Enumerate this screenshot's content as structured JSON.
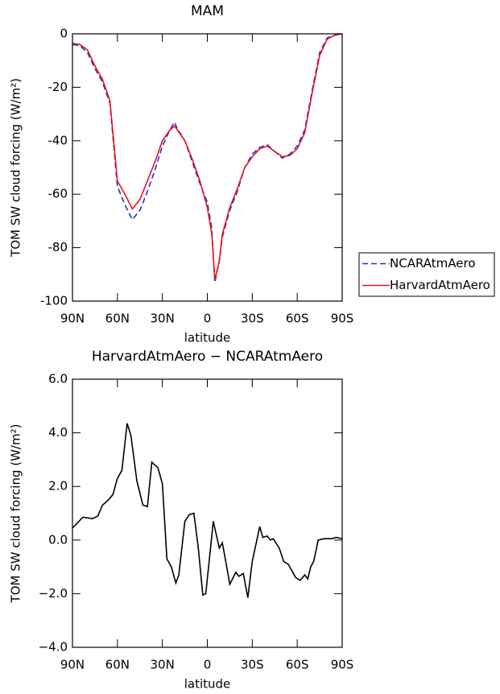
{
  "chart_data": [
    {
      "type": "line",
      "title": "MAM",
      "xlabel": "latitude",
      "ylabel": "TOM SW cloud forcing (W/m²)",
      "xlim": [
        90,
        -90
      ],
      "ylim": [
        -100,
        0
      ],
      "xticks": [
        {
          "value": 90,
          "label": "90N"
        },
        {
          "value": 60,
          "label": "60N"
        },
        {
          "value": 30,
          "label": "30N"
        },
        0,
        {
          "value": -30,
          "label": "30S"
        },
        {
          "value": -60,
          "label": "60S"
        },
        {
          "value": -90,
          "label": "90S"
        }
      ],
      "yticks": [
        -100,
        -80,
        -60,
        -40,
        -20,
        0
      ],
      "legend": "right",
      "x": [
        90,
        85,
        80,
        75,
        70,
        65,
        60,
        55,
        50,
        45,
        40,
        35,
        30,
        25,
        22,
        20,
        15,
        10,
        5,
        0,
        -3,
        -5,
        -8,
        -10,
        -15,
        -20,
        -25,
        -30,
        -35,
        -40,
        -45,
        -50,
        -55,
        -60,
        -65,
        -70,
        -75,
        -80,
        -85,
        -90
      ],
      "series": [
        {
          "name": "NCARAtmAero",
          "color": "#2233cc",
          "dashed": true,
          "values": [
            -4,
            -4.5,
            -7,
            -13,
            -18,
            -26,
            -57,
            -64,
            -69.5,
            -66,
            -59,
            -51,
            -42,
            -36,
            -33,
            -35.5,
            -40,
            -48,
            -56,
            -63,
            -73,
            -93,
            -85,
            -76,
            -66,
            -59,
            -50,
            -45,
            -42.5,
            -41.5,
            -44,
            -46.5,
            -45,
            -42,
            -36,
            -21,
            -7,
            -1.5,
            -0.5,
            0
          ]
        },
        {
          "name": "HarvardAtmAero",
          "color": "#e8141a",
          "dashed": false,
          "values": [
            -3.5,
            -4,
            -6,
            -12,
            -17,
            -25,
            -55,
            -60,
            -65.5,
            -62,
            -55,
            -48,
            -40,
            -36,
            -34.5,
            -36,
            -40,
            -47,
            -55,
            -65,
            -75,
            -92,
            -85,
            -75,
            -65,
            -58,
            -50,
            -46,
            -43,
            -42,
            -44,
            -46,
            -45.5,
            -43,
            -37,
            -22,
            -8,
            -2,
            -0.5,
            0
          ]
        }
      ]
    },
    {
      "type": "line",
      "title": "HarvardAtmAero − NCARAtmAero",
      "xlabel": "latitude",
      "ylabel": "TOM SW cloud forcing (W/m²)",
      "xlim": [
        90,
        -90
      ],
      "ylim": [
        -4,
        6
      ],
      "xticks": [
        {
          "value": 90,
          "label": "90N"
        },
        {
          "value": 60,
          "label": "60N"
        },
        {
          "value": 30,
          "label": "30N"
        },
        0,
        {
          "value": -30,
          "label": "30S"
        },
        {
          "value": -60,
          "label": "60S"
        },
        {
          "value": -90,
          "label": "90S"
        }
      ],
      "yticks": [
        {
          "value": -4,
          "label": "−4.0"
        },
        {
          "value": -2,
          "label": "−2.0"
        },
        {
          "value": 0,
          "label": "0.0"
        },
        {
          "value": 2,
          "label": "2.0"
        },
        {
          "value": 4,
          "label": "4.0"
        },
        {
          "value": 6,
          "label": "6.0"
        }
      ],
      "x": [
        90,
        83,
        76.5,
        73,
        70,
        66,
        63,
        60,
        57,
        53.5,
        51,
        47,
        43,
        40,
        37,
        33,
        30,
        27,
        24,
        21,
        19,
        15,
        12,
        9,
        6,
        3,
        1,
        -4,
        -8,
        -10,
        -12,
        -15,
        -19,
        -21,
        -24,
        -27,
        -30,
        -35,
        -37,
        -40,
        -42,
        -44,
        -48,
        -51,
        -54,
        -59,
        -62,
        -65,
        -67,
        -69,
        -71,
        -74,
        -78,
        -83,
        -86,
        -90
      ],
      "series": [
        {
          "color": "#000000",
          "dashed": false,
          "values": [
            0.45,
            0.85,
            0.8,
            0.9,
            1.3,
            1.5,
            1.7,
            2.3,
            2.6,
            4.35,
            3.9,
            2.2,
            1.3,
            1.25,
            2.9,
            2.7,
            2.1,
            -0.7,
            -1.0,
            -1.6,
            -1.3,
            0.7,
            0.95,
            1.0,
            -0.3,
            -2.05,
            -2.0,
            0.7,
            -0.3,
            -0.1,
            -0.7,
            -1.65,
            -1.2,
            -1.35,
            -1.25,
            -2.15,
            -0.8,
            0.5,
            0.1,
            0.15,
            0,
            0.05,
            -0.3,
            -0.8,
            -0.9,
            -1.4,
            -1.5,
            -1.3,
            -1.45,
            -1.0,
            -0.8,
            0,
            0.05,
            0.05,
            0.1,
            0.05
          ]
        }
      ]
    }
  ]
}
